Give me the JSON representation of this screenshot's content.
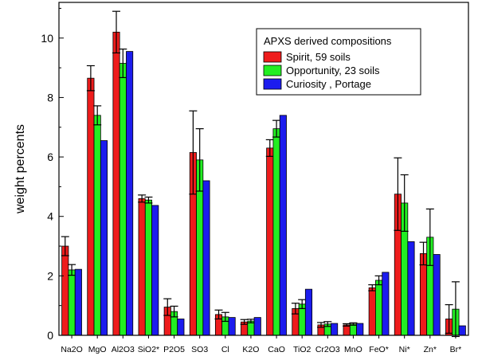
{
  "chart_data": {
    "type": "bar",
    "ylabel": "weight percents",
    "ylim": [
      0,
      11.2
    ],
    "yticks": [
      0,
      2,
      4,
      6,
      8,
      10
    ],
    "categories": [
      "Na2O",
      "MgO",
      "Al2O3",
      "SiO2*",
      "P2O5",
      "SO3",
      "Cl",
      "K2O",
      "CaO",
      "TiO2",
      "Cr2O3",
      "MnO",
      "FeO*",
      "Ni*",
      "Zn*",
      "Br*"
    ],
    "legend": {
      "title": "APXS derived compositions",
      "position": "top-right"
    },
    "series": [
      {
        "name": "Spirit, 59 soils",
        "color": "#ee1c1c",
        "values": [
          3.0,
          8.65,
          10.2,
          4.6,
          0.95,
          6.15,
          0.7,
          0.45,
          6.3,
          0.9,
          0.35,
          0.35,
          1.6,
          4.75,
          2.75,
          0.55
        ],
        "errors": [
          0.32,
          0.42,
          0.7,
          0.12,
          0.28,
          1.4,
          0.15,
          0.08,
          0.28,
          0.18,
          0.08,
          0.04,
          0.1,
          1.22,
          0.38,
          0.48
        ]
      },
      {
        "name": "Opportunity, 23 soils",
        "color": "#22ee22",
        "values": [
          2.2,
          7.4,
          9.15,
          4.55,
          0.8,
          5.9,
          0.62,
          0.48,
          6.95,
          1.05,
          0.38,
          0.38,
          1.85,
          4.45,
          3.3,
          0.88
        ],
        "errors": [
          0.18,
          0.32,
          0.48,
          0.1,
          0.18,
          1.05,
          0.15,
          0.06,
          0.28,
          0.15,
          0.08,
          0.04,
          0.15,
          0.95,
          0.95,
          0.92
        ]
      },
      {
        "name": "Curiosity , Portage",
        "color": "#1c1cee",
        "values": [
          2.22,
          6.55,
          9.55,
          4.37,
          0.55,
          5.2,
          0.6,
          0.6,
          7.4,
          1.55,
          0.4,
          0.4,
          2.12,
          3.15,
          2.72,
          0.32
        ],
        "errors": null
      }
    ]
  }
}
